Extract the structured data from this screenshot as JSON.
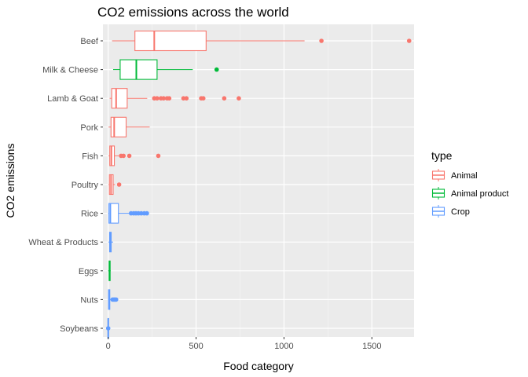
{
  "chart_data": {
    "type": "boxplot",
    "title": "CO2 emissions across the world",
    "xlabel": "Food category",
    "ylabel": "CO2 emissions",
    "xlim": [
      -30,
      1740
    ],
    "x_ticks": [
      0,
      500,
      1000,
      1500
    ],
    "grid": true,
    "legend": {
      "title": "type",
      "placement": "right",
      "entries": [
        {
          "name": "Animal",
          "color": "#F8766D"
        },
        {
          "name": "Animal product",
          "color": "#00BA38"
        },
        {
          "name": "Crop",
          "color": "#619CFF"
        }
      ]
    },
    "categories": [
      {
        "label": "Beef",
        "type": "Animal",
        "min": 22,
        "q1": 152,
        "median": 262,
        "q3": 557,
        "max": 1117,
        "outliers": [
          1213,
          1712
        ]
      },
      {
        "label": "Milk & Cheese",
        "type": "Animal product",
        "min": 28,
        "q1": 68,
        "median": 160,
        "q3": 278,
        "max": 481,
        "outliers": [
          617
        ]
      },
      {
        "label": "Lamb & Goat",
        "type": "Animal",
        "min": 8,
        "q1": 20,
        "median": 45,
        "q3": 108,
        "max": 222,
        "outliers": [
          262,
          278,
          300,
          315,
          335,
          347,
          428,
          445,
          529,
          541,
          660,
          743
        ]
      },
      {
        "label": "Pork",
        "type": "Animal",
        "min": 2,
        "q1": 16,
        "median": 34,
        "q3": 102,
        "max": 236,
        "outliers": []
      },
      {
        "label": "Fish",
        "type": "Animal",
        "min": 2,
        "q1": 9,
        "median": 18,
        "q3": 35,
        "max": 60,
        "outliers": [
          73,
          87,
          120,
          285
        ]
      },
      {
        "label": "Poultry",
        "type": "Animal",
        "min": 2,
        "q1": 7,
        "median": 16,
        "q3": 28,
        "max": 40,
        "outliers": [
          62
        ]
      },
      {
        "label": "Rice",
        "type": "Crop",
        "min": 0,
        "q1": 4,
        "median": 12,
        "q3": 58,
        "max": 123,
        "outliers": [
          130,
          145,
          158,
          172,
          188,
          205,
          220
        ]
      },
      {
        "label": "Wheat & Products",
        "type": "Crop",
        "min": 1,
        "q1": 8,
        "median": 12,
        "q3": 17,
        "max": 28,
        "outliers": []
      },
      {
        "label": "Eggs",
        "type": "Animal product",
        "min": 0,
        "q1": 5,
        "median": 8,
        "q3": 11,
        "max": 14,
        "outliers": []
      },
      {
        "label": "Nuts",
        "type": "Crop",
        "min": 0,
        "q1": 2,
        "median": 5,
        "q3": 9,
        "max": 20,
        "outliers": [
          25,
          32,
          38,
          45
        ]
      },
      {
        "label": "Soybeans",
        "type": "Crop",
        "min": -3,
        "q1": -1,
        "median": 0,
        "q3": 2,
        "max": 6,
        "outliers": [
          0
        ]
      }
    ]
  }
}
